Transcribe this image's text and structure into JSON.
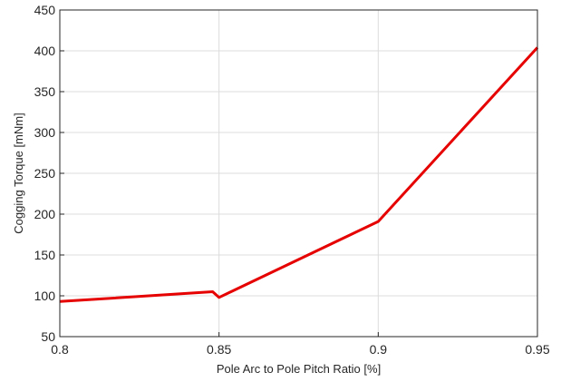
{
  "chart_data": {
    "type": "line",
    "title": "",
    "xlabel": "Pole Arc to Pole Pitch Ratio [%]",
    "ylabel": "Cogging Torque [mNm]",
    "xlim": [
      0.8,
      0.95
    ],
    "ylim": [
      50,
      450
    ],
    "x_ticks": [
      0.8,
      0.85,
      0.9,
      0.95
    ],
    "x_tick_labels": [
      "0.8",
      "0.85",
      "0.9",
      "0.95"
    ],
    "y_ticks": [
      50,
      100,
      150,
      200,
      250,
      300,
      350,
      400,
      450
    ],
    "y_tick_labels": [
      "50",
      "100",
      "150",
      "200",
      "250",
      "300",
      "350",
      "400",
      "450"
    ],
    "grid": true,
    "legend": "none",
    "series": [
      {
        "color": "#e60000",
        "x": [
          0.8,
          0.848,
          0.85,
          0.9,
          0.95
        ],
        "y": [
          93,
          105,
          98,
          191,
          404
        ]
      }
    ]
  }
}
